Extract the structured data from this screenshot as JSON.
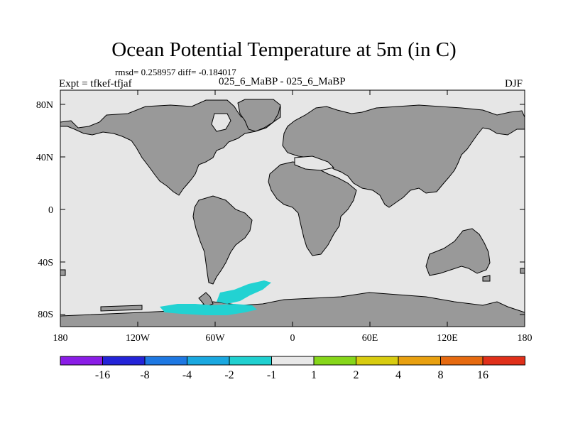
{
  "header": {
    "title": "Ocean Potential Temperature at 5m (in C)",
    "stats": "rmsd= 0.258957 diff= -0.184017",
    "expt": "Expt = tfkef-tfjaf",
    "case": "025_6_MaBP - 025_6_MaBP",
    "season": "DJF"
  },
  "map": {
    "lat_ticks": [
      "80N",
      "40N",
      "0",
      "40S",
      "80S"
    ],
    "lon_ticks": [
      "180",
      "120W",
      "60W",
      "0",
      "60E",
      "120E",
      "180"
    ],
    "colors": {
      "land": "#999999",
      "ocean": "#e6e6e6",
      "anomaly": "#22d2d2",
      "outline": "#000000"
    }
  },
  "colorbar": {
    "labels": [
      "-16",
      "-8",
      "-4",
      "-2",
      "-1",
      "1",
      "2",
      "4",
      "8",
      "16"
    ],
    "colors": [
      "#8a1de6",
      "#2424d8",
      "#1e78e2",
      "#1aa8e0",
      "#20d0d0",
      "#e8e8e8",
      "#86d61a",
      "#d8cc10",
      "#e8a010",
      "#e66a10",
      "#e0301a"
    ]
  }
}
